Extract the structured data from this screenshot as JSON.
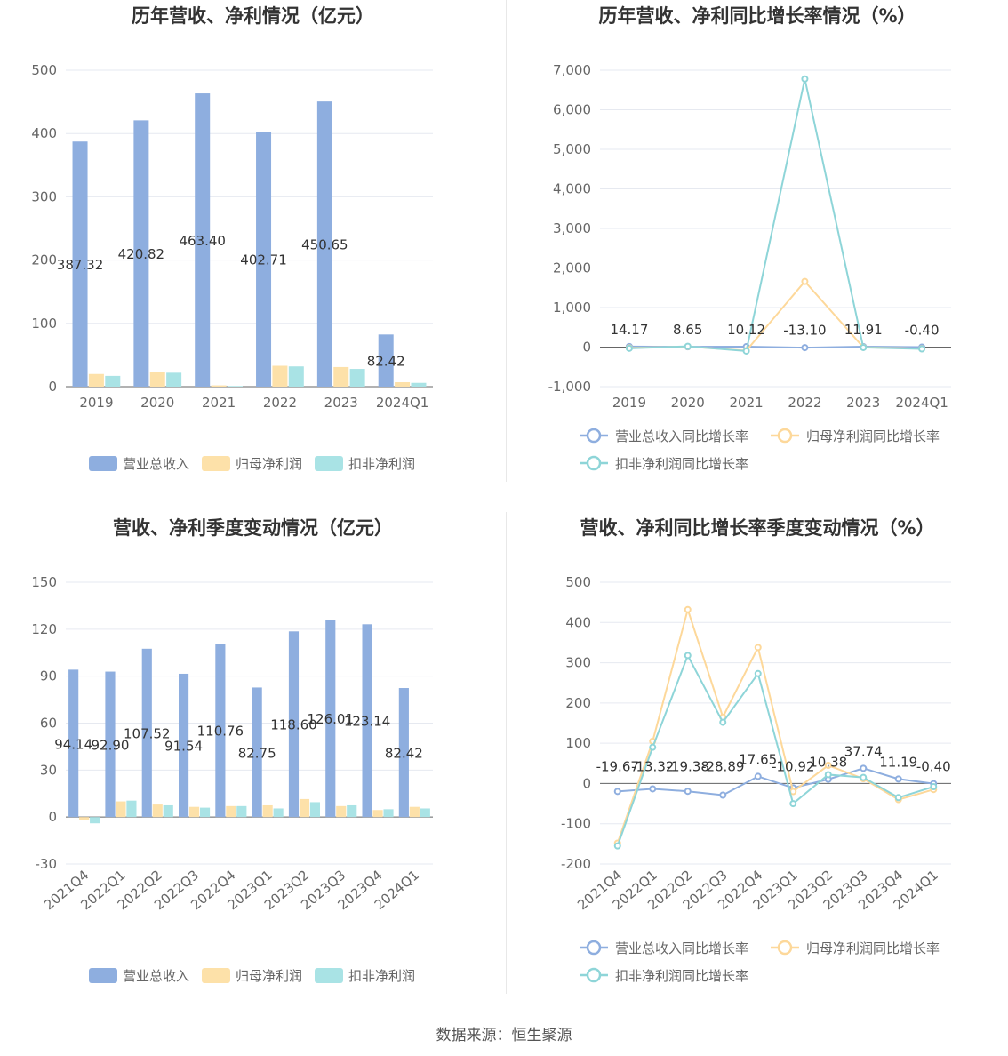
{
  "colors": {
    "revenue": "#8eaedf",
    "net_profit": "#fde1a9",
    "deducted_profit": "#8ed5d8",
    "grid": "#e6e9f0",
    "axis_text": "#666666",
    "label_text": "#333333"
  },
  "footer": "数据来源：恒生聚源",
  "chart_data": [
    {
      "id": "annual-bar",
      "type": "bar",
      "title": "历年营收、净利情况（亿元）",
      "categories": [
        "2019",
        "2020",
        "2021",
        "2022",
        "2023",
        "2024Q1"
      ],
      "ylim": [
        0,
        500
      ],
      "yticks": [
        0,
        100,
        200,
        300,
        400,
        500
      ],
      "series": [
        {
          "name": "营业总收入",
          "color": "#8eaedf",
          "values": [
            387.32,
            420.82,
            463.4,
            402.71,
            450.65,
            82.42
          ],
          "labels": [
            "387.32",
            "420.82",
            "463.40",
            "402.71",
            "450.65",
            "82.42"
          ]
        },
        {
          "name": "归母净利润",
          "color": "#fde1a9",
          "values": [
            20,
            23,
            2,
            33,
            31,
            7
          ]
        },
        {
          "name": "扣非净利润",
          "color": "#a9e3e5",
          "values": [
            17,
            22,
            1,
            32,
            28,
            6
          ]
        }
      ],
      "legend": "bottom",
      "grid": true
    },
    {
      "id": "annual-line",
      "type": "line",
      "title": "历年营收、净利同比增长率情况（%）",
      "categories": [
        "2019",
        "2020",
        "2021",
        "2022",
        "2023",
        "2024Q1"
      ],
      "ylim": [
        -1000,
        7000
      ],
      "yticks": [
        -1000,
        0,
        1000,
        2000,
        3000,
        4000,
        5000,
        6000,
        7000
      ],
      "ytick_labels": [
        "-1,000",
        "0",
        "1,000",
        "2,000",
        "3,000",
        "4,000",
        "5,000",
        "6,000",
        "7,000"
      ],
      "series": [
        {
          "name": "营业总收入同比增长率",
          "color": "#8eaedf",
          "values": [
            14.17,
            8.65,
            10.12,
            -13.1,
            11.91,
            -0.4
          ],
          "labels": [
            "14.17",
            "8.65",
            "10.12",
            "-13.10",
            "11.91",
            "-0.40"
          ]
        },
        {
          "name": "归母净利润同比增长率",
          "color": "#fdd89a",
          "values": [
            -20,
            15,
            -90,
            1660,
            -5,
            -40
          ]
        },
        {
          "name": "扣非净利润同比增长率",
          "color": "#8ed5d8",
          "values": [
            -30,
            20,
            -100,
            6780,
            -10,
            -45
          ]
        }
      ],
      "legend": "bottom",
      "grid": true
    },
    {
      "id": "quarter-bar",
      "type": "bar",
      "title": "营收、净利季度变动情况（亿元）",
      "categories": [
        "2021Q4",
        "2022Q1",
        "2022Q2",
        "2022Q3",
        "2022Q4",
        "2023Q1",
        "2023Q2",
        "2023Q3",
        "2023Q4",
        "2024Q1"
      ],
      "ylim": [
        -30,
        150
      ],
      "yticks": [
        -30,
        0,
        30,
        60,
        90,
        120,
        150
      ],
      "series": [
        {
          "name": "营业总收入",
          "color": "#8eaedf",
          "values": [
            94.14,
            92.9,
            107.52,
            91.54,
            110.76,
            82.75,
            118.6,
            126.01,
            123.14,
            82.42
          ],
          "labels": [
            "94.14",
            "92.90",
            "107.52",
            "91.54",
            "110.76",
            "82.75",
            "118.60",
            "126.01",
            "123.14",
            "82.42"
          ]
        },
        {
          "name": "归母净利润",
          "color": "#fde1a9",
          "values": [
            -2,
            10,
            8,
            6.5,
            7,
            7.5,
            11.5,
            7,
            4.5,
            6.5
          ]
        },
        {
          "name": "扣非净利润",
          "color": "#a9e3e5",
          "values": [
            -4,
            10.5,
            7.5,
            6,
            7,
            5.5,
            9.5,
            7.5,
            5,
            5.5
          ]
        }
      ],
      "legend": "bottom",
      "grid": true
    },
    {
      "id": "quarter-line",
      "type": "line",
      "title": "营收、净利同比增长率季度变动情况（%）",
      "categories": [
        "2021Q4",
        "2022Q1",
        "2022Q2",
        "2022Q3",
        "2022Q4",
        "2023Q1",
        "2023Q2",
        "2023Q3",
        "2023Q4",
        "2024Q1"
      ],
      "ylim": [
        -200,
        500
      ],
      "yticks": [
        -200,
        -100,
        0,
        100,
        200,
        300,
        400,
        500
      ],
      "series": [
        {
          "name": "营业总收入同比增长率",
          "color": "#8eaedf",
          "values": [
            -19.67,
            -13.32,
            -19.38,
            -28.89,
            17.65,
            -10.92,
            10.38,
            37.74,
            11.19,
            -0.4
          ],
          "labels": [
            "-19.67",
            "-13.32",
            "-19.38",
            "-28.89",
            "17.65",
            "-10.92",
            "10.38",
            "37.74",
            "11.19",
            "-0.40"
          ]
        },
        {
          "name": "归母净利润同比增长率",
          "color": "#fdd89a",
          "values": [
            -148,
            105,
            432,
            165,
            338,
            -20,
            45,
            12,
            -40,
            -15
          ]
        },
        {
          "name": "扣非净利润同比增长率",
          "color": "#8ed5d8",
          "values": [
            -155,
            90,
            318,
            152,
            273,
            -50,
            22,
            15,
            -35,
            -8
          ]
        }
      ],
      "legend": "bottom",
      "grid": true
    }
  ]
}
